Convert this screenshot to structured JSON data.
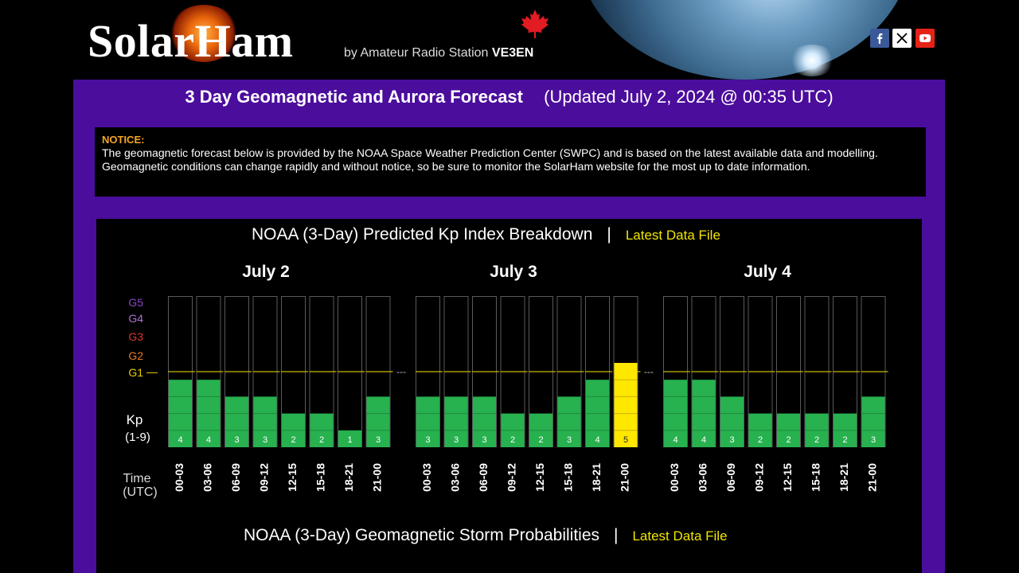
{
  "header": {
    "logo_text": "SolarHam",
    "byline": "by Amateur Radio Station",
    "callsign": "VE3EN",
    "social": [
      "facebook-icon",
      "x-icon",
      "youtube-icon"
    ]
  },
  "page": {
    "title": "3 Day Geomagnetic and Aurora Forecast",
    "updated": "(Updated July 2, 2024 @ 00:35 UTC)"
  },
  "notice": {
    "label": "NOTICE:",
    "text": "The geomagnetic forecast below is provided by the NOAA Space Weather Prediction Center (SWPC) and is based on the latest available data and modelling. Geomagnetic conditions can change rapidly and without notice, so be sure to monitor the SolarHam website for the most up to date information."
  },
  "kp_section": {
    "title": "NOAA (3-Day) Predicted Kp Index Breakdown",
    "separator": "|",
    "link": "Latest Data File"
  },
  "storm_section": {
    "title": "NOAA (3-Day) Geomagnetic Storm Probabilities",
    "separator": "|",
    "link": "Latest Data File"
  },
  "colors": {
    "panel": "#4b0d9c",
    "bar_normal": "#27b14f",
    "bar_storm": "#ffe800",
    "g1_line": "#c9b800",
    "link": "#f2e600"
  },
  "chart_data": {
    "type": "bar",
    "title": "NOAA (3-Day) Predicted Kp Index Breakdown",
    "ylabel": "Kp (1-9)",
    "ylim": [
      0,
      9
    ],
    "xlabel": "Time (UTC)",
    "g_scale": [
      {
        "label": "G5",
        "color": "#8e44c8"
      },
      {
        "label": "G4",
        "color": "#b070d8"
      },
      {
        "label": "G3",
        "color": "#d8382a"
      },
      {
        "label": "G2",
        "color": "#e67e22"
      },
      {
        "label": "G1",
        "color": "#e8d000"
      }
    ],
    "g1_threshold": 5,
    "categories": [
      "00-03",
      "03-06",
      "06-09",
      "09-12",
      "12-15",
      "15-18",
      "18-21",
      "21-00"
    ],
    "days": [
      {
        "date": "July 2",
        "values": [
          4,
          4,
          3,
          3,
          2,
          2,
          1,
          3
        ]
      },
      {
        "date": "July 3",
        "values": [
          3,
          3,
          3,
          2,
          2,
          3,
          4,
          5
        ]
      },
      {
        "date": "July 4",
        "values": [
          4,
          4,
          3,
          2,
          2,
          2,
          2,
          3
        ]
      }
    ],
    "y_label_top": "Kp",
    "y_label_bottom": "(1-9)",
    "x_label_top": "Time",
    "x_label_bottom": "(UTC)",
    "day_separator": "---",
    "g1_dash": "—"
  }
}
